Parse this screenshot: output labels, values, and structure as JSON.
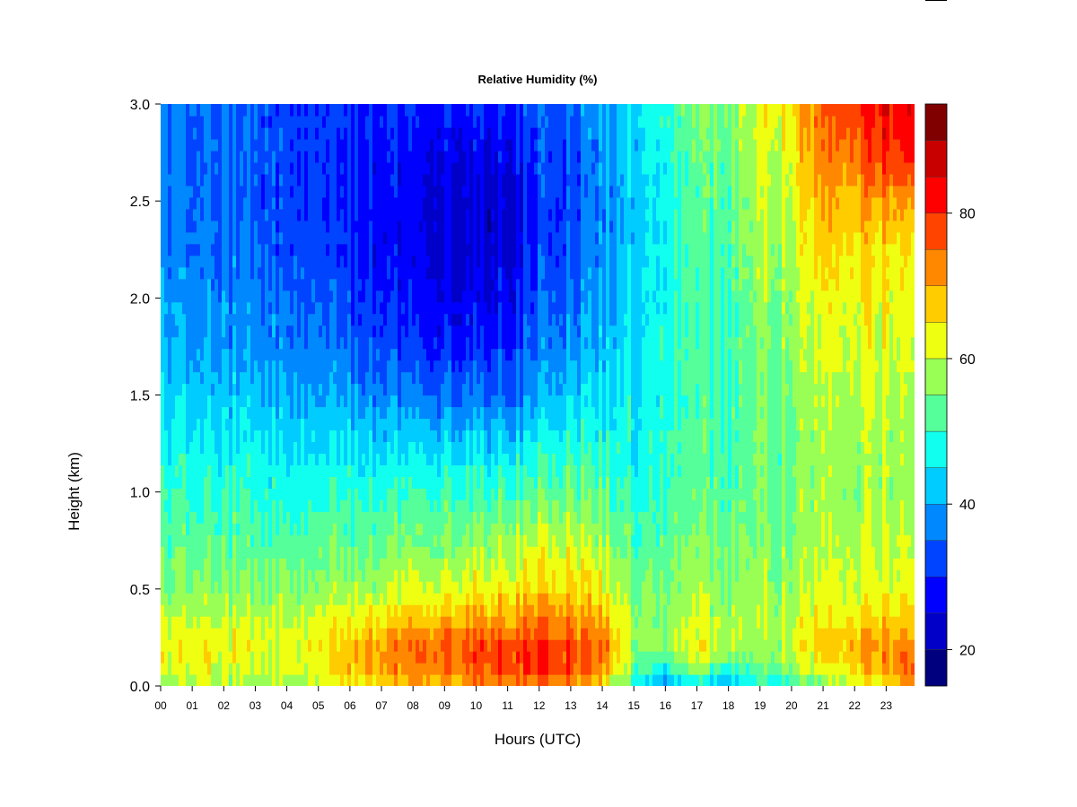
{
  "chart_data": {
    "type": "heatmap",
    "title": "Relative Humidity (%)",
    "xlabel": "Hours (UTC)",
    "ylabel": "Height (km)",
    "x_ticks": [
      "00",
      "01",
      "02",
      "03",
      "04",
      "05",
      "06",
      "07",
      "08",
      "09",
      "10",
      "11",
      "12",
      "13",
      "14",
      "15",
      "16",
      "17",
      "18",
      "19",
      "20",
      "21",
      "22",
      "23"
    ],
    "y_ticks": [
      "0.0",
      "0.5",
      "1.0",
      "1.5",
      "2.0",
      "2.5",
      "3.0"
    ],
    "xlim": [
      0,
      23.9
    ],
    "ylim": [
      0,
      3.0
    ],
    "colorbar": {
      "levels": [
        15,
        20,
        25,
        30,
        35,
        40,
        45,
        50,
        55,
        60,
        65,
        70,
        75,
        80,
        85,
        90,
        95
      ],
      "colors": [
        "#00007f",
        "#0000c8",
        "#0000ff",
        "#0044ff",
        "#0088ff",
        "#00ccff",
        "#11ffee",
        "#55ff99",
        "#99ff55",
        "#eeff11",
        "#ffcc00",
        "#ff8800",
        "#ff4400",
        "#ff0000",
        "#c80000",
        "#800000"
      ],
      "tick_labels": [
        "20",
        "40",
        "60",
        "80"
      ],
      "tick_values": [
        20,
        40,
        60,
        80
      ]
    },
    "time_hours": [
      0,
      1,
      2,
      3,
      4,
      5,
      6,
      7,
      8,
      9,
      10,
      11,
      12,
      13,
      14,
      15,
      16,
      17,
      18,
      19,
      20,
      21,
      22,
      23,
      23.9
    ],
    "heights_km": [
      0.0,
      0.1,
      0.2,
      0.3,
      0.5,
      0.75,
      1.0,
      1.25,
      1.5,
      1.75,
      2.0,
      2.25,
      2.5,
      2.75,
      3.0
    ],
    "values": [
      [
        58,
        62,
        63,
        61,
        56,
        53,
        50,
        48,
        44,
        41,
        40,
        38,
        37,
        37,
        36
      ],
      [
        59,
        63,
        64,
        62,
        57,
        53,
        50,
        47,
        43,
        40,
        38,
        36,
        36,
        35,
        35
      ],
      [
        58,
        62,
        63,
        61,
        56,
        53,
        50,
        46,
        42,
        39,
        37,
        36,
        35,
        35,
        35
      ],
      [
        57,
        61,
        63,
        61,
        56,
        52,
        49,
        46,
        42,
        39,
        37,
        35,
        34,
        34,
        34
      ],
      [
        58,
        62,
        63,
        62,
        57,
        53,
        49,
        46,
        42,
        38,
        36,
        34,
        33,
        33,
        33
      ],
      [
        60,
        64,
        65,
        63,
        57,
        53,
        49,
        45,
        41,
        37,
        35,
        33,
        32,
        32,
        32
      ],
      [
        64,
        68,
        69,
        65,
        58,
        53,
        50,
        45,
        40,
        35,
        32,
        30,
        30,
        30,
        31
      ],
      [
        66,
        71,
        72,
        67,
        59,
        54,
        50,
        44,
        38,
        33,
        30,
        28,
        28,
        29,
        31
      ],
      [
        68,
        74,
        75,
        70,
        61,
        55,
        50,
        44,
        37,
        31,
        28,
        26,
        26,
        27,
        30
      ],
      [
        70,
        76,
        77,
        72,
        62,
        56,
        51,
        44,
        36,
        30,
        27,
        25,
        25,
        27,
        30
      ],
      [
        71,
        77,
        78,
        73,
        63,
        57,
        51,
        44,
        36,
        30,
        27,
        24,
        24,
        26,
        30
      ],
      [
        72,
        78,
        79,
        74,
        64,
        58,
        52,
        44,
        36,
        31,
        27,
        25,
        25,
        27,
        31
      ],
      [
        73,
        80,
        80,
        75,
        66,
        60,
        53,
        46,
        40,
        36,
        33,
        31,
        30,
        31,
        33
      ],
      [
        70,
        77,
        78,
        74,
        66,
        60,
        54,
        48,
        43,
        38,
        35,
        33,
        32,
        33,
        35
      ],
      [
        67,
        74,
        75,
        71,
        64,
        58,
        53,
        49,
        45,
        42,
        40,
        38,
        37,
        38,
        40
      ],
      [
        48,
        55,
        58,
        58,
        56,
        53,
        50,
        48,
        47,
        46,
        45,
        44,
        43,
        44,
        46
      ],
      [
        38,
        50,
        57,
        58,
        56,
        53,
        51,
        50,
        49,
        49,
        48,
        48,
        48,
        49,
        50
      ],
      [
        44,
        58,
        62,
        60,
        57,
        54,
        52,
        51,
        50,
        50,
        50,
        50,
        51,
        52,
        54
      ],
      [
        40,
        52,
        60,
        60,
        57,
        55,
        53,
        52,
        52,
        52,
        52,
        53,
        54,
        55,
        57
      ],
      [
        46,
        52,
        56,
        58,
        57,
        55,
        54,
        54,
        54,
        55,
        56,
        57,
        58,
        60,
        62
      ],
      [
        52,
        58,
        61,
        61,
        58,
        56,
        55,
        55,
        56,
        57,
        58,
        60,
        62,
        64,
        66
      ],
      [
        54,
        62,
        66,
        64,
        60,
        58,
        57,
        57,
        58,
        60,
        62,
        66,
        68,
        72,
        75
      ],
      [
        60,
        68,
        70,
        67,
        62,
        60,
        58,
        58,
        60,
        62,
        64,
        66,
        70,
        76,
        80
      ],
      [
        64,
        72,
        72,
        68,
        63,
        60,
        58,
        59,
        60,
        62,
        64,
        66,
        72,
        80,
        84
      ],
      [
        74,
        78,
        76,
        70,
        64,
        61,
        59,
        59,
        60,
        62,
        64,
        66,
        72,
        82,
        86
      ]
    ]
  }
}
